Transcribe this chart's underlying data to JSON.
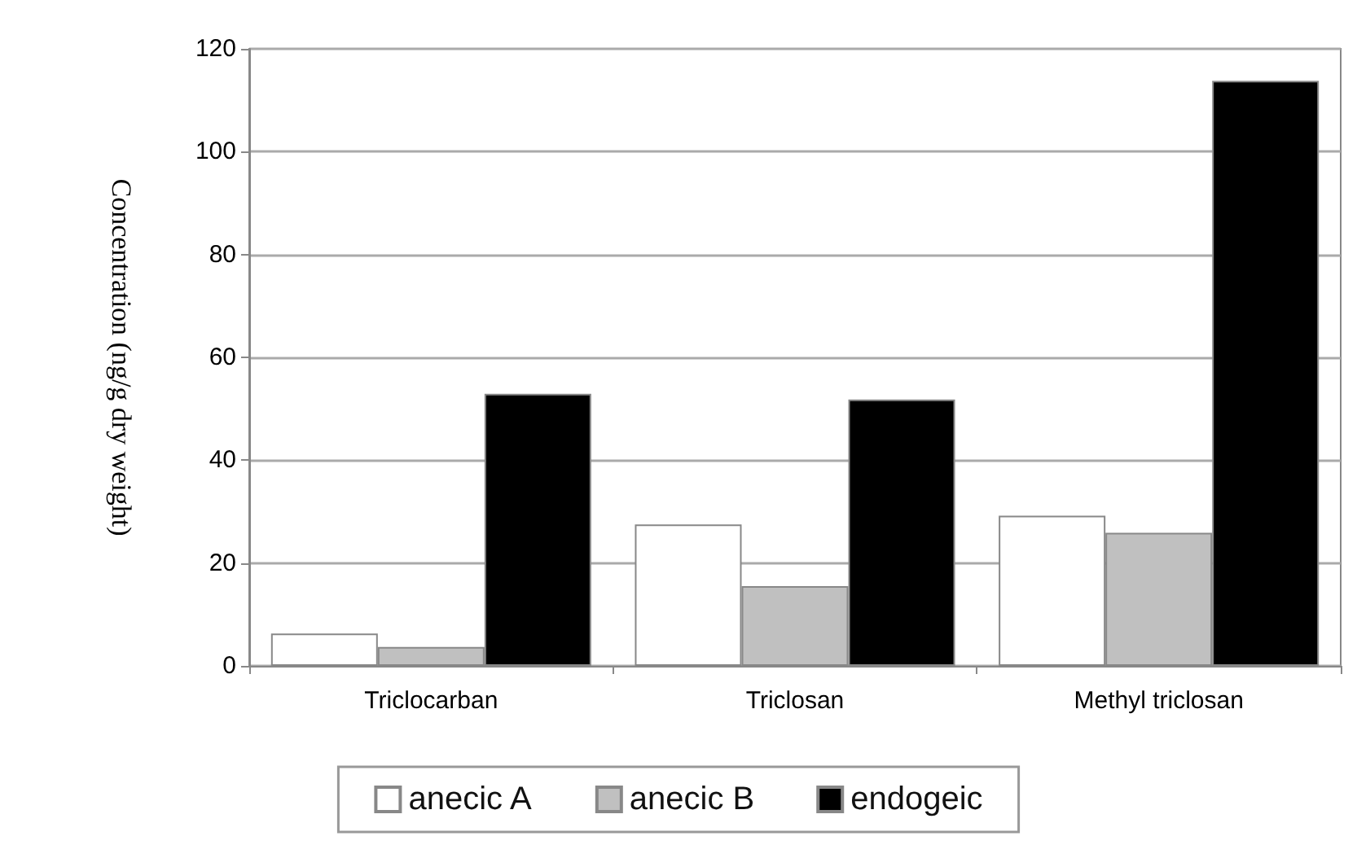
{
  "chart_data": {
    "type": "bar",
    "ylabel": "Concentration (ng/g dry weight)",
    "categories": [
      "Triclocarban",
      "Triclosan",
      "Methyl triclosan"
    ],
    "series": [
      {
        "name": "anecic A",
        "color": "#ffffff",
        "values": [
          6.3,
          27.5,
          29.2
        ]
      },
      {
        "name": "anecic B",
        "color": "#c0c0c0",
        "values": [
          3.7,
          15.5,
          25.9
        ]
      },
      {
        "name": "endogeic",
        "color": "#000000",
        "values": [
          52.9,
          51.8,
          113.8
        ]
      }
    ],
    "ylim": [
      0,
      120
    ],
    "yticks": [
      0,
      20,
      40,
      60,
      80,
      100,
      120
    ],
    "grid": "y",
    "legend": "bottom"
  }
}
